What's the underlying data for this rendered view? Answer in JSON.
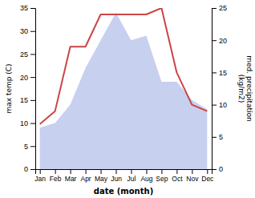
{
  "chart_data": {
    "type": "combo",
    "xlabel": "date (month)",
    "ylabel": "max temp (C)",
    "y2label": "med. precipitation\n(kg/m2)",
    "categories": [
      "Jan",
      "Feb",
      "Mar",
      "Apr",
      "May",
      "Jun",
      "Jul",
      "Aug",
      "Sep",
      "Oct",
      "Nov",
      "Dec"
    ],
    "series": [
      {
        "type": "area",
        "axis": "y",
        "color": "#c8d0f0",
        "values": [
          9,
          10,
          14,
          22,
          28,
          34,
          28,
          29,
          19,
          19,
          15,
          13
        ]
      },
      {
        "type": "line",
        "axis": "y2",
        "color": "#cc4444",
        "values": [
          7,
          9,
          19,
          19,
          24,
          24,
          24,
          24,
          25,
          15,
          10,
          9
        ]
      }
    ],
    "ylim": [
      0,
      35
    ],
    "yticks": [
      0,
      5,
      10,
      15,
      20,
      25,
      30,
      35
    ],
    "y2lim": [
      0,
      25
    ],
    "y2ticks": [
      0,
      5,
      10,
      15,
      20,
      25
    ],
    "grid": false
  }
}
